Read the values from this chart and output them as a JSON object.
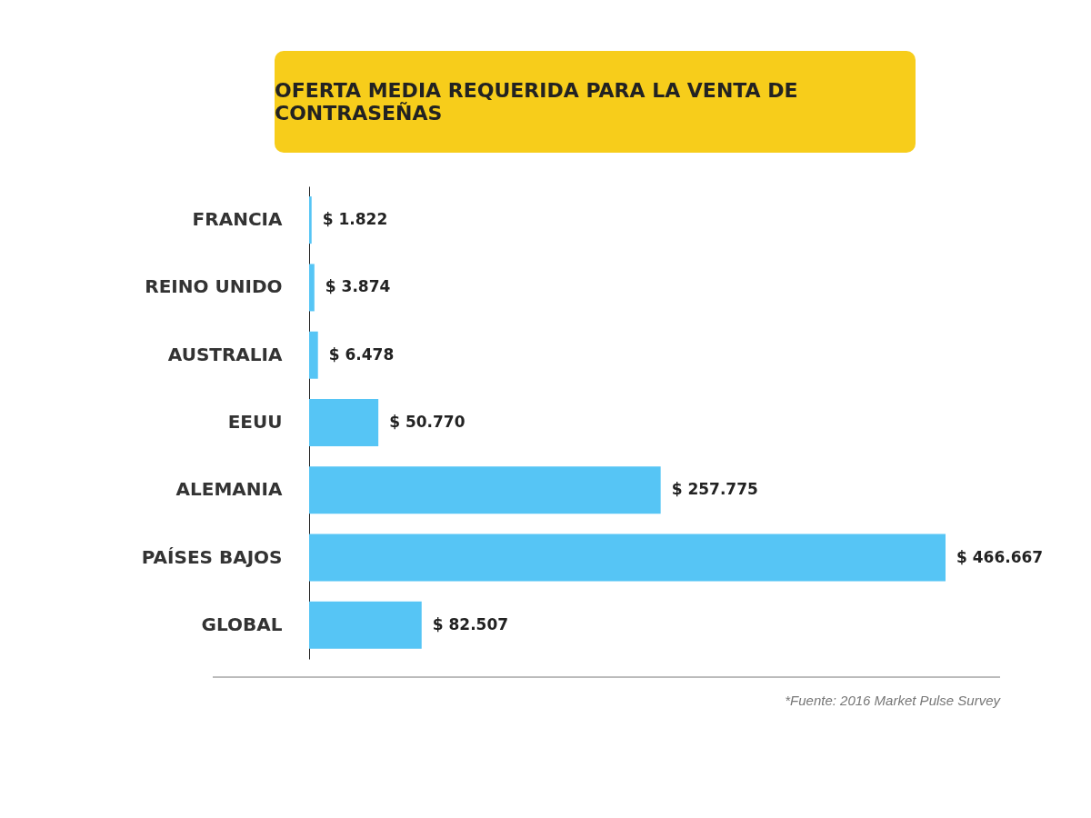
{
  "chart_data": {
    "type": "bar",
    "orientation": "horizontal",
    "title": "OFERTA MEDIA REQUERIDA PARA LA VENTA DE CONTRASEÑAS",
    "categories": [
      "FRANCIA",
      "REINO UNIDO",
      "AUSTRALIA",
      "EEUU",
      "ALEMANIA",
      "PAÍSES BAJOS",
      "GLOBAL"
    ],
    "values": [
      1822,
      3874,
      6478,
      50770,
      257775,
      466667,
      82507
    ],
    "value_labels": [
      "$ 1.822",
      "$ 3.874",
      "$ 6.478",
      "$ 50.770",
      "$ 257.775",
      "$ 466.667",
      "$ 82.507"
    ],
    "color": "#56c5f5",
    "annotations": [
      "*Fuente: 2016 Market Pulse Survey"
    ]
  }
}
